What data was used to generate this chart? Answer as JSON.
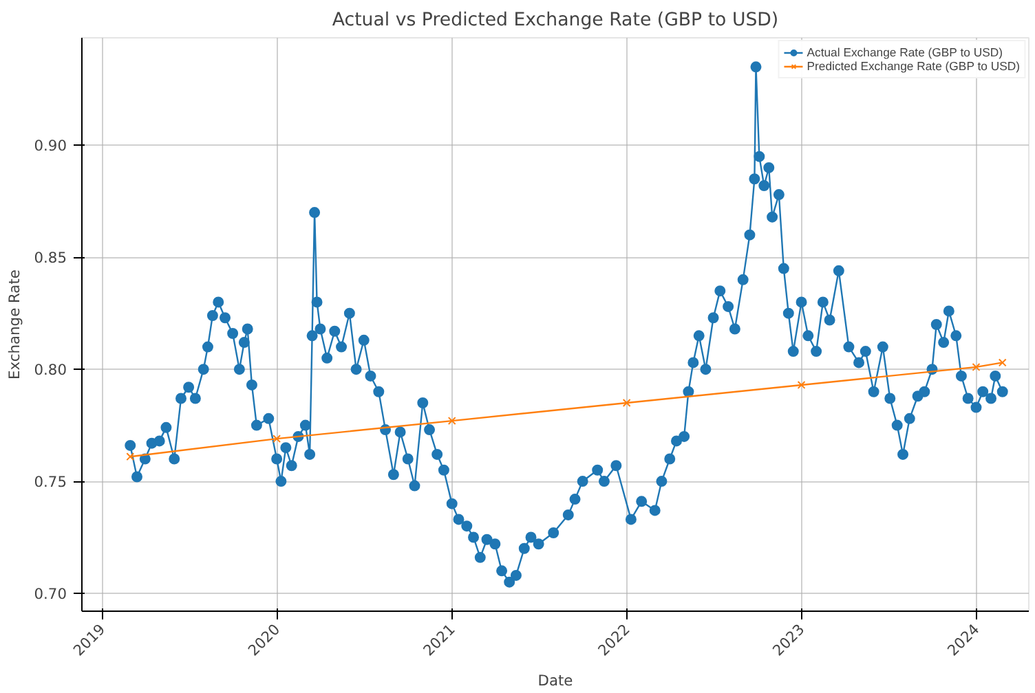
{
  "chart_data": {
    "type": "line",
    "title": "Actual vs Predicted Exchange Rate (GBP to USD)",
    "xlabel": "Date",
    "ylabel": "Exchange Rate",
    "xlim": [
      "2018-11-20",
      "2024-04-20"
    ],
    "xticks": [
      "2019",
      "2020",
      "2021",
      "2022",
      "2023",
      "2024"
    ],
    "ylim": [
      0.692,
      0.948
    ],
    "yticks": [
      {
        "value": 0.7,
        "label": "0.70"
      },
      {
        "value": 0.75,
        "label": "0.75"
      },
      {
        "value": 0.8,
        "label": "0.80"
      },
      {
        "value": 0.85,
        "label": "0.85"
      },
      {
        "value": 0.9,
        "label": "0.90"
      }
    ],
    "grid": true,
    "legend": "top right",
    "series": [
      {
        "name": "Actual Exchange Rate (GBP to USD)",
        "color": "#1f77b4",
        "marker": "circle",
        "x": [
          "2019-03-01",
          "2019-03-15",
          "2019-04-01",
          "2019-04-15",
          "2019-05-01",
          "2019-05-15",
          "2019-06-01",
          "2019-06-15",
          "2019-07-01",
          "2019-07-15",
          "2019-08-01",
          "2019-08-10",
          "2019-08-20",
          "2019-09-01",
          "2019-09-15",
          "2019-10-01",
          "2019-10-15",
          "2019-10-25",
          "2019-11-01",
          "2019-11-10",
          "2019-11-20",
          "2019-12-15",
          "2020-01-01",
          "2020-01-10",
          "2020-01-20",
          "2020-02-01",
          "2020-02-15",
          "2020-03-01",
          "2020-03-10",
          "2020-03-15",
          "2020-03-20",
          "2020-03-25",
          "2020-04-01",
          "2020-04-15",
          "2020-05-01",
          "2020-05-15",
          "2020-06-01",
          "2020-06-15",
          "2020-07-01",
          "2020-07-15",
          "2020-08-01",
          "2020-08-15",
          "2020-09-01",
          "2020-09-15",
          "2020-10-01",
          "2020-10-15",
          "2020-11-01",
          "2020-11-15",
          "2020-12-01",
          "2020-12-15",
          "2021-01-01",
          "2021-01-15",
          "2021-02-01",
          "2021-02-15",
          "2021-03-01",
          "2021-03-15",
          "2021-04-01",
          "2021-04-15",
          "2021-05-01",
          "2021-05-15",
          "2021-06-01",
          "2021-06-15",
          "2021-07-01",
          "2021-08-01",
          "2021-09-01",
          "2021-09-15",
          "2021-10-01",
          "2021-11-01",
          "2021-11-15",
          "2021-12-10",
          "2022-01-10",
          "2022-02-01",
          "2022-03-01",
          "2022-03-15",
          "2022-04-01",
          "2022-04-15",
          "2022-05-01",
          "2022-05-10",
          "2022-05-20",
          "2022-06-01",
          "2022-06-15",
          "2022-07-01",
          "2022-07-15",
          "2022-08-01",
          "2022-08-15",
          "2022-09-01",
          "2022-09-15",
          "2022-09-25",
          "2022-09-28",
          "2022-10-05",
          "2022-10-15",
          "2022-10-25",
          "2022-11-01",
          "2022-11-15",
          "2022-11-25",
          "2022-12-05",
          "2022-12-15",
          "2023-01-01",
          "2023-01-15",
          "2023-02-01",
          "2023-02-15",
          "2023-03-01",
          "2023-03-20",
          "2023-04-10",
          "2023-05-01",
          "2023-05-15",
          "2023-06-01",
          "2023-06-20",
          "2023-07-05",
          "2023-07-20",
          "2023-08-01",
          "2023-08-15",
          "2023-09-01",
          "2023-09-15",
          "2023-10-01",
          "2023-10-10",
          "2023-10-25",
          "2023-11-05",
          "2023-11-20",
          "2023-12-01",
          "2023-12-15",
          "2024-01-01",
          "2024-01-15",
          "2024-02-01",
          "2024-02-10",
          "2024-02-25"
        ],
        "values": [
          0.766,
          0.752,
          0.76,
          0.767,
          0.768,
          0.774,
          0.76,
          0.787,
          0.792,
          0.787,
          0.8,
          0.81,
          0.824,
          0.83,
          0.823,
          0.816,
          0.8,
          0.812,
          0.818,
          0.793,
          0.775,
          0.778,
          0.76,
          0.75,
          0.765,
          0.757,
          0.77,
          0.775,
          0.762,
          0.815,
          0.87,
          0.83,
          0.818,
          0.805,
          0.817,
          0.81,
          0.825,
          0.8,
          0.813,
          0.797,
          0.79,
          0.773,
          0.753,
          0.772,
          0.76,
          0.748,
          0.785,
          0.773,
          0.762,
          0.755,
          0.74,
          0.733,
          0.73,
          0.725,
          0.716,
          0.724,
          0.722,
          0.71,
          0.705,
          0.708,
          0.72,
          0.725,
          0.722,
          0.727,
          0.735,
          0.742,
          0.75,
          0.755,
          0.75,
          0.757,
          0.733,
          0.741,
          0.737,
          0.75,
          0.76,
          0.768,
          0.77,
          0.79,
          0.803,
          0.815,
          0.8,
          0.823,
          0.835,
          0.828,
          0.818,
          0.84,
          0.86,
          0.885,
          0.935,
          0.895,
          0.882,
          0.89,
          0.868,
          0.878,
          0.845,
          0.825,
          0.808,
          0.83,
          0.815,
          0.808,
          0.83,
          0.822,
          0.844,
          0.81,
          0.803,
          0.808,
          0.79,
          0.81,
          0.787,
          0.775,
          0.762,
          0.778,
          0.788,
          0.79,
          0.8,
          0.82,
          0.812,
          0.826,
          0.815,
          0.797,
          0.787,
          0.783,
          0.79,
          0.787,
          0.797,
          0.79
        ]
      },
      {
        "name": "Predicted Exchange Rate (GBP to USD)",
        "color": "#ff7f0e",
        "marker": "cross",
        "x": [
          "2019-03-01",
          "2020-01-01",
          "2021-01-01",
          "2022-01-01",
          "2023-01-01",
          "2024-01-01",
          "2024-02-25"
        ],
        "values": [
          0.761,
          0.769,
          0.777,
          0.785,
          0.793,
          0.801,
          0.803
        ]
      }
    ]
  }
}
